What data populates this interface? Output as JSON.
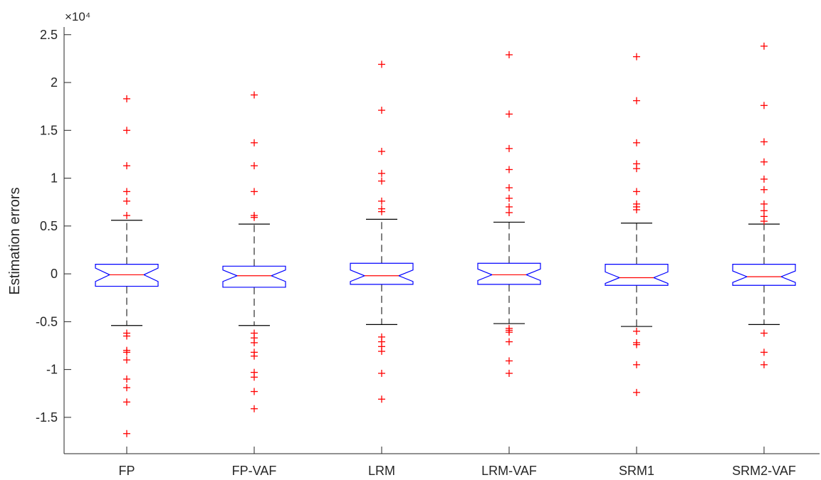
{
  "chart_data": {
    "type": "box",
    "title": "",
    "xlabel": "",
    "ylabel": "Estimation errors",
    "y_exponent_label": "×10⁴",
    "ylim": [
      -1.88,
      2.58
    ],
    "yticks": [
      -1.5,
      -1,
      -0.5,
      0,
      0.5,
      1,
      1.5,
      2,
      2.5
    ],
    "ytick_labels": [
      "-1.5",
      "-1",
      "-0.5",
      "0",
      "0.5",
      "1",
      "1.5",
      "2",
      "2.5"
    ],
    "notched": true,
    "grid": false,
    "colors": {
      "box": "#0000ff",
      "median": "#ff0000",
      "whisker": "#000000",
      "outlier": "#ff0000",
      "axis": "#262626"
    },
    "categories": [
      "FP",
      "FP-VAF",
      "LRM",
      "LRM-VAF",
      "SRM1",
      "SRM2-VAF"
    ],
    "boxes": [
      {
        "name": "FP",
        "whisker_low": -0.54,
        "q1": -0.13,
        "median": -0.01,
        "q3": 0.1,
        "whisker_high": 0.56,
        "notch_low": -0.08,
        "notch_high": 0.06,
        "outliers": [
          1.83,
          1.5,
          1.13,
          0.86,
          0.76,
          0.61,
          -0.62,
          -0.65,
          -0.8,
          -0.82,
          -0.9,
          -1.1,
          -1.19,
          -1.34,
          -1.67
        ]
      },
      {
        "name": "FP-VAF",
        "whisker_low": -0.54,
        "q1": -0.14,
        "median": -0.02,
        "q3": 0.08,
        "whisker_high": 0.52,
        "notch_low": -0.08,
        "notch_high": 0.04,
        "outliers": [
          1.87,
          1.37,
          1.13,
          0.86,
          0.61,
          0.59,
          -0.62,
          -0.67,
          -0.72,
          -0.82,
          -0.86,
          -1.03,
          -1.08,
          -1.23,
          -1.41
        ]
      },
      {
        "name": "LRM",
        "whisker_low": -0.53,
        "q1": -0.11,
        "median": -0.02,
        "q3": 0.11,
        "whisker_high": 0.57,
        "notch_low": -0.08,
        "notch_high": 0.04,
        "outliers": [
          2.19,
          1.71,
          1.28,
          1.05,
          0.97,
          0.76,
          0.68,
          0.65,
          -0.66,
          -0.71,
          -0.76,
          -0.81,
          -1.04,
          -1.31
        ]
      },
      {
        "name": "LRM-VAF",
        "whisker_low": -0.52,
        "q1": -0.11,
        "median": -0.01,
        "q3": 0.11,
        "whisker_high": 0.54,
        "notch_low": -0.07,
        "notch_high": 0.05,
        "outliers": [
          2.29,
          1.67,
          1.31,
          1.09,
          0.9,
          0.79,
          0.7,
          0.64,
          -0.57,
          -0.59,
          -0.61,
          -0.71,
          -0.91,
          -1.04
        ]
      },
      {
        "name": "SRM1",
        "whisker_low": -0.55,
        "q1": -0.12,
        "median": -0.04,
        "q3": 0.1,
        "whisker_high": 0.53,
        "notch_low": -0.1,
        "notch_high": 0.02,
        "outliers": [
          2.27,
          1.81,
          1.37,
          1.15,
          1.1,
          0.86,
          0.73,
          0.7,
          0.67,
          -0.6,
          -0.72,
          -0.74,
          -0.95,
          -1.24
        ]
      },
      {
        "name": "SRM2-VAF",
        "whisker_low": -0.53,
        "q1": -0.12,
        "median": -0.03,
        "q3": 0.1,
        "whisker_high": 0.52,
        "notch_low": -0.09,
        "notch_high": 0.03,
        "outliers": [
          2.38,
          1.76,
          1.38,
          1.17,
          0.99,
          0.88,
          0.73,
          0.66,
          0.6,
          0.55,
          -0.62,
          -0.82,
          -0.95
        ]
      }
    ]
  }
}
